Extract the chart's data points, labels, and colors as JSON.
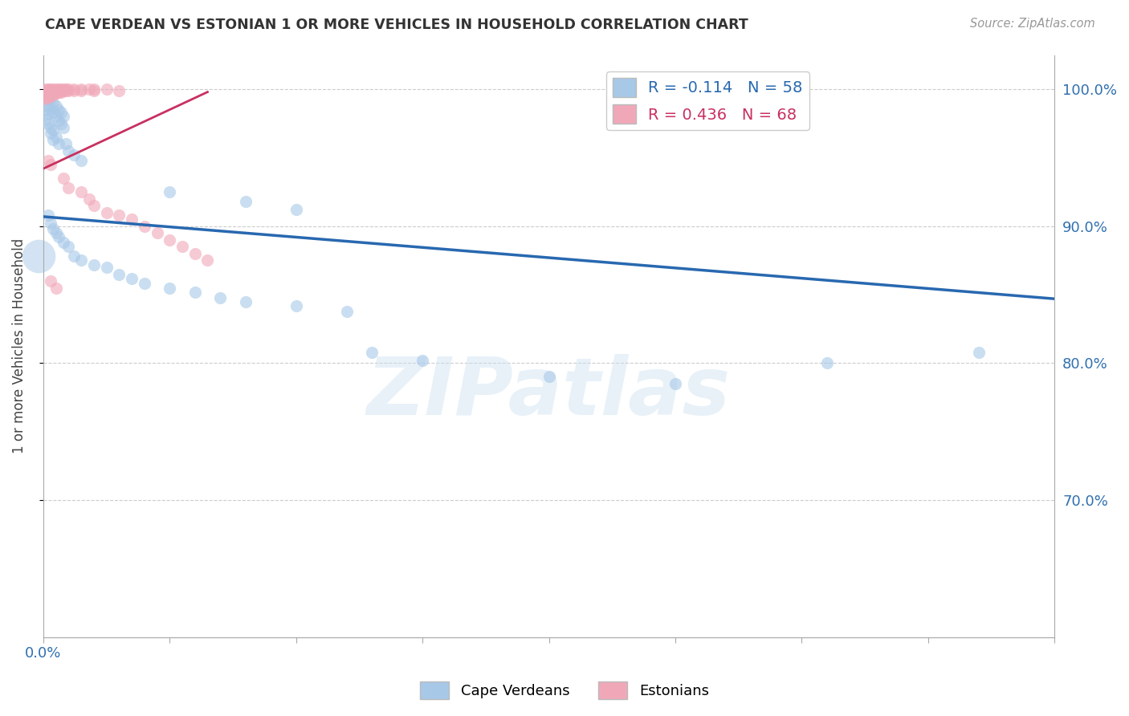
{
  "title": "CAPE VERDEAN VS ESTONIAN 1 OR MORE VEHICLES IN HOUSEHOLD CORRELATION CHART",
  "source": "Source: ZipAtlas.com",
  "ylabel": "1 or more Vehicles in Household",
  "legend_blue": {
    "R": -0.114,
    "N": 58,
    "label": "Cape Verdeans"
  },
  "legend_pink": {
    "R": 0.436,
    "N": 68,
    "label": "Estonians"
  },
  "blue_color": "#a8c8e8",
  "pink_color": "#f0a8b8",
  "blue_line_color": "#2868b0",
  "pink_line_color": "#c83060",
  "watermark": "ZIPatlas",
  "xlim": [
    0.0,
    0.4
  ],
  "ylim": [
    0.6,
    1.025
  ],
  "yticks": [
    0.7,
    0.8,
    0.9,
    1.0
  ],
  "xtick_positions": [
    0.0,
    0.05,
    0.1,
    0.15,
    0.2,
    0.25,
    0.3,
    0.35,
    0.4
  ],
  "xtick_labels_show": {
    "0.0": "0.0%"
  },
  "blue_line_x": [
    0.0,
    0.4
  ],
  "blue_line_y": [
    0.907,
    0.847
  ],
  "pink_line_x": [
    0.0,
    0.065
  ],
  "pink_line_y": [
    0.942,
    0.998
  ],
  "blue_scatter": [
    [
      0.001,
      0.998
    ],
    [
      0.001,
      0.992
    ],
    [
      0.001,
      0.985
    ],
    [
      0.001,
      0.978
    ],
    [
      0.002,
      0.995
    ],
    [
      0.002,
      0.988
    ],
    [
      0.002,
      0.982
    ],
    [
      0.002,
      0.975
    ],
    [
      0.003,
      0.993
    ],
    [
      0.003,
      0.986
    ],
    [
      0.003,
      0.972
    ],
    [
      0.003,
      0.968
    ],
    [
      0.004,
      0.99
    ],
    [
      0.004,
      0.983
    ],
    [
      0.004,
      0.97
    ],
    [
      0.004,
      0.963
    ],
    [
      0.005,
      0.988
    ],
    [
      0.005,
      0.98
    ],
    [
      0.005,
      0.965
    ],
    [
      0.006,
      0.985
    ],
    [
      0.006,
      0.977
    ],
    [
      0.006,
      0.96
    ],
    [
      0.007,
      0.983
    ],
    [
      0.007,
      0.975
    ],
    [
      0.008,
      0.98
    ],
    [
      0.008,
      0.972
    ],
    [
      0.009,
      0.96
    ],
    [
      0.01,
      0.955
    ],
    [
      0.012,
      0.952
    ],
    [
      0.015,
      0.948
    ],
    [
      0.002,
      0.908
    ],
    [
      0.003,
      0.902
    ],
    [
      0.004,
      0.898
    ],
    [
      0.005,
      0.895
    ],
    [
      0.006,
      0.892
    ],
    [
      0.008,
      0.888
    ],
    [
      0.01,
      0.885
    ],
    [
      0.012,
      0.878
    ],
    [
      0.015,
      0.875
    ],
    [
      0.02,
      0.872
    ],
    [
      0.025,
      0.87
    ],
    [
      0.03,
      0.865
    ],
    [
      0.035,
      0.862
    ],
    [
      0.04,
      0.858
    ],
    [
      0.05,
      0.855
    ],
    [
      0.06,
      0.852
    ],
    [
      0.07,
      0.848
    ],
    [
      0.08,
      0.845
    ],
    [
      0.1,
      0.842
    ],
    [
      0.12,
      0.838
    ],
    [
      0.05,
      0.925
    ],
    [
      0.08,
      0.918
    ],
    [
      0.1,
      0.912
    ],
    [
      0.13,
      0.808
    ],
    [
      0.15,
      0.802
    ],
    [
      0.2,
      0.79
    ],
    [
      0.25,
      0.785
    ],
    [
      0.31,
      0.8
    ],
    [
      0.37,
      0.808
    ]
  ],
  "pink_scatter": [
    [
      0.001,
      1.0
    ],
    [
      0.001,
      0.999
    ],
    [
      0.001,
      0.998
    ],
    [
      0.001,
      0.997
    ],
    [
      0.001,
      0.996
    ],
    [
      0.001,
      0.995
    ],
    [
      0.001,
      0.994
    ],
    [
      0.001,
      0.993
    ],
    [
      0.002,
      1.0
    ],
    [
      0.002,
      0.999
    ],
    [
      0.002,
      0.998
    ],
    [
      0.002,
      0.997
    ],
    [
      0.002,
      0.996
    ],
    [
      0.002,
      0.995
    ],
    [
      0.002,
      0.994
    ],
    [
      0.003,
      1.0
    ],
    [
      0.003,
      0.999
    ],
    [
      0.003,
      0.998
    ],
    [
      0.003,
      0.997
    ],
    [
      0.003,
      0.996
    ],
    [
      0.003,
      0.995
    ],
    [
      0.004,
      1.0
    ],
    [
      0.004,
      0.999
    ],
    [
      0.004,
      0.998
    ],
    [
      0.004,
      0.997
    ],
    [
      0.004,
      0.996
    ],
    [
      0.005,
      1.0
    ],
    [
      0.005,
      0.999
    ],
    [
      0.005,
      0.998
    ],
    [
      0.005,
      0.997
    ],
    [
      0.006,
      1.0
    ],
    [
      0.006,
      0.999
    ],
    [
      0.006,
      0.998
    ],
    [
      0.007,
      1.0
    ],
    [
      0.007,
      0.999
    ],
    [
      0.007,
      0.998
    ],
    [
      0.008,
      1.0
    ],
    [
      0.008,
      0.999
    ],
    [
      0.009,
      1.0
    ],
    [
      0.009,
      0.999
    ],
    [
      0.01,
      1.0
    ],
    [
      0.01,
      0.999
    ],
    [
      0.012,
      1.0
    ],
    [
      0.012,
      0.999
    ],
    [
      0.015,
      1.0
    ],
    [
      0.015,
      0.999
    ],
    [
      0.018,
      1.0
    ],
    [
      0.02,
      1.0
    ],
    [
      0.02,
      0.999
    ],
    [
      0.025,
      1.0
    ],
    [
      0.03,
      0.999
    ],
    [
      0.002,
      0.948
    ],
    [
      0.003,
      0.945
    ],
    [
      0.008,
      0.935
    ],
    [
      0.01,
      0.928
    ],
    [
      0.015,
      0.925
    ],
    [
      0.018,
      0.92
    ],
    [
      0.02,
      0.915
    ],
    [
      0.025,
      0.91
    ],
    [
      0.03,
      0.908
    ],
    [
      0.035,
      0.905
    ],
    [
      0.04,
      0.9
    ],
    [
      0.045,
      0.895
    ],
    [
      0.05,
      0.89
    ],
    [
      0.055,
      0.885
    ],
    [
      0.06,
      0.88
    ],
    [
      0.065,
      0.875
    ],
    [
      0.003,
      0.86
    ],
    [
      0.005,
      0.855
    ]
  ]
}
